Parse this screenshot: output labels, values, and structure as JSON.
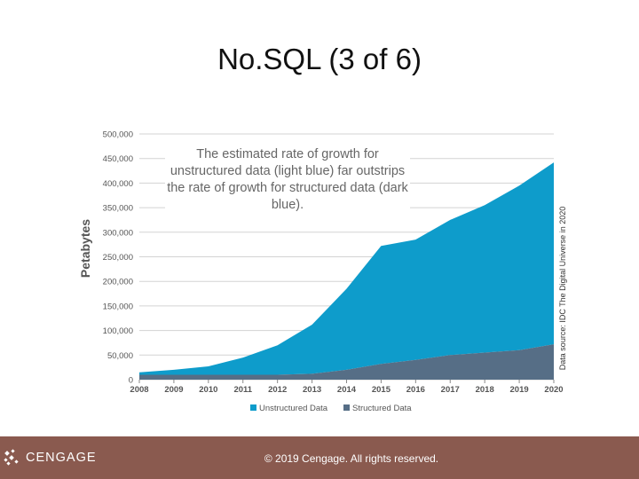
{
  "slide": {
    "title": "No.SQL (3 of 6)"
  },
  "chart_data": {
    "type": "area",
    "stacked": true,
    "ylabel": "Petabytes",
    "ylim": [
      0,
      500000
    ],
    "y_ticks": [
      "0",
      "50,000",
      "100,000",
      "150,000",
      "200,000",
      "250,000",
      "300,000",
      "350,000",
      "400,000",
      "450,000",
      "500,000"
    ],
    "x_ticks": [
      "2008",
      "2009",
      "2010",
      "2011",
      "2012",
      "2013",
      "2014",
      "2015",
      "2016",
      "2017",
      "2018",
      "2019",
      "2020"
    ],
    "x": [
      2008,
      2009,
      2010,
      2011,
      2012,
      2013,
      2014,
      2015,
      2016,
      2017,
      2018,
      2019,
      2020
    ],
    "grid": true,
    "legend_position": "bottom",
    "series": [
      {
        "name": "Unstructured Data",
        "color": "#0e9ccb",
        "values": [
          5000,
          10000,
          17000,
          35000,
          60000,
          100000,
          165000,
          240000,
          245000,
          275000,
          300000,
          335000,
          370000
        ]
      },
      {
        "name": "Structured Data",
        "color": "#566e86",
        "values": [
          10000,
          10000,
          10000,
          10000,
          10000,
          12000,
          20000,
          32000,
          40000,
          50000,
          55000,
          60000,
          72000
        ]
      }
    ],
    "annotation": "The estimated rate of growth for unstructured data (light blue) far outstrips the rate of growth for structured data (dark blue).",
    "source": "Data source: IDC The Digital Universe in 2020"
  },
  "footer": {
    "logo_text": "CENGAGE",
    "copyright": "© 2019 Cengage. All rights reserved."
  },
  "colors": {
    "footer_bg": "#8a5a4f",
    "unstructured": "#0e9ccb",
    "structured": "#566e86"
  }
}
